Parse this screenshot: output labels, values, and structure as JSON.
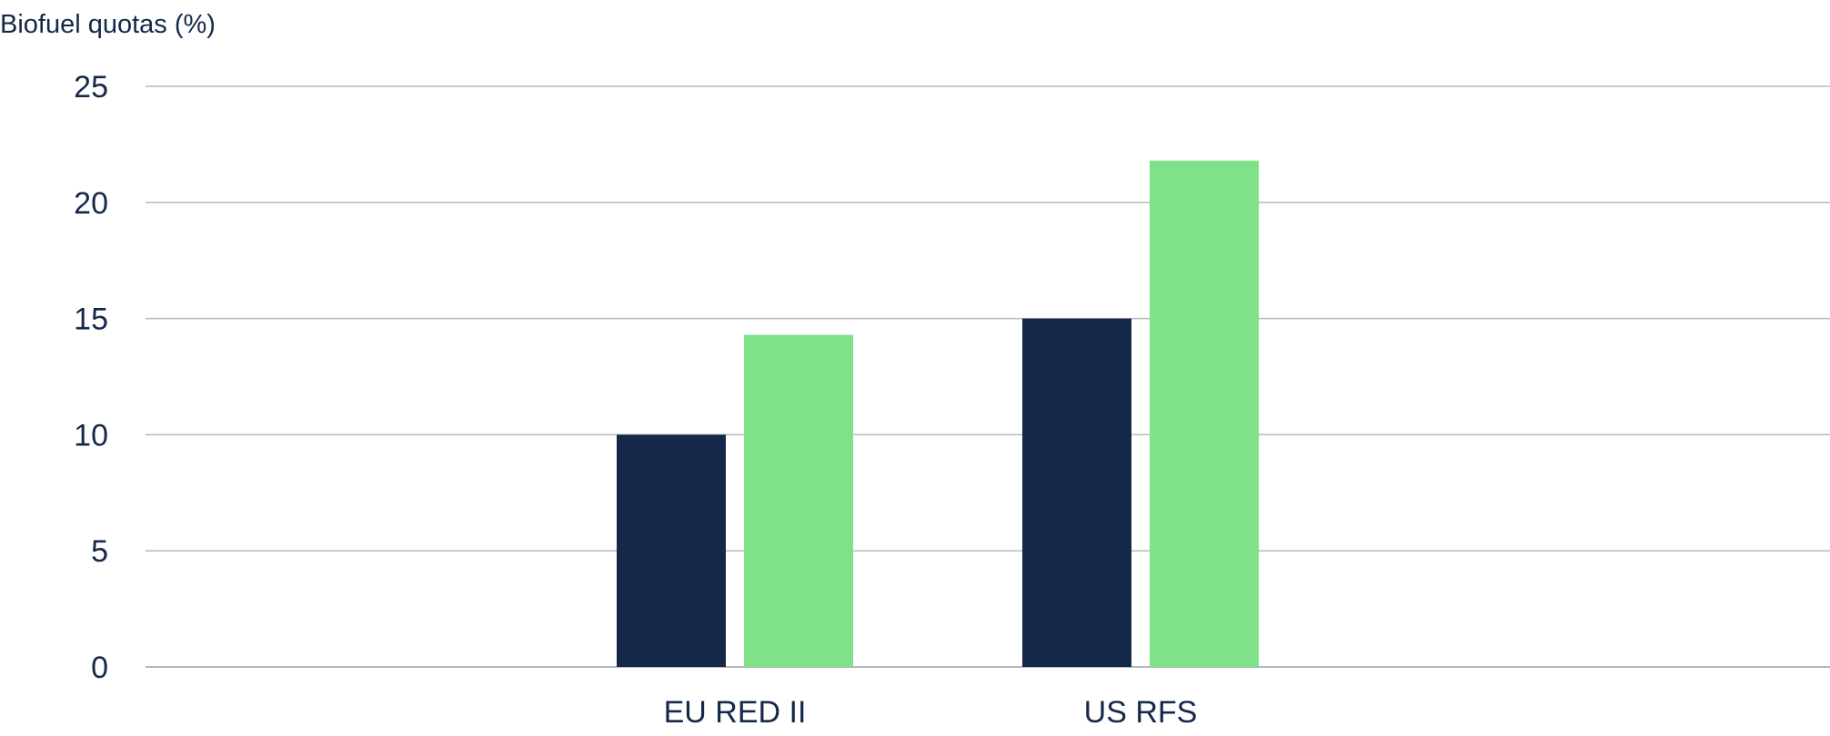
{
  "chart_data": {
    "type": "bar",
    "title": "",
    "ylabel": "Biofuel quotas (%)",
    "xlabel": "",
    "categories": [
      "EU RED II",
      "US RFS"
    ],
    "series": [
      {
        "values": [
          10,
          15
        ],
        "color": "#15284a"
      },
      {
        "values": [
          14.3,
          21.8
        ],
        "color": "#7ee388"
      }
    ],
    "ylim": [
      0,
      25
    ],
    "yticks": [
      0,
      5,
      10,
      15,
      20,
      25
    ],
    "grid": true,
    "legend": "none"
  }
}
